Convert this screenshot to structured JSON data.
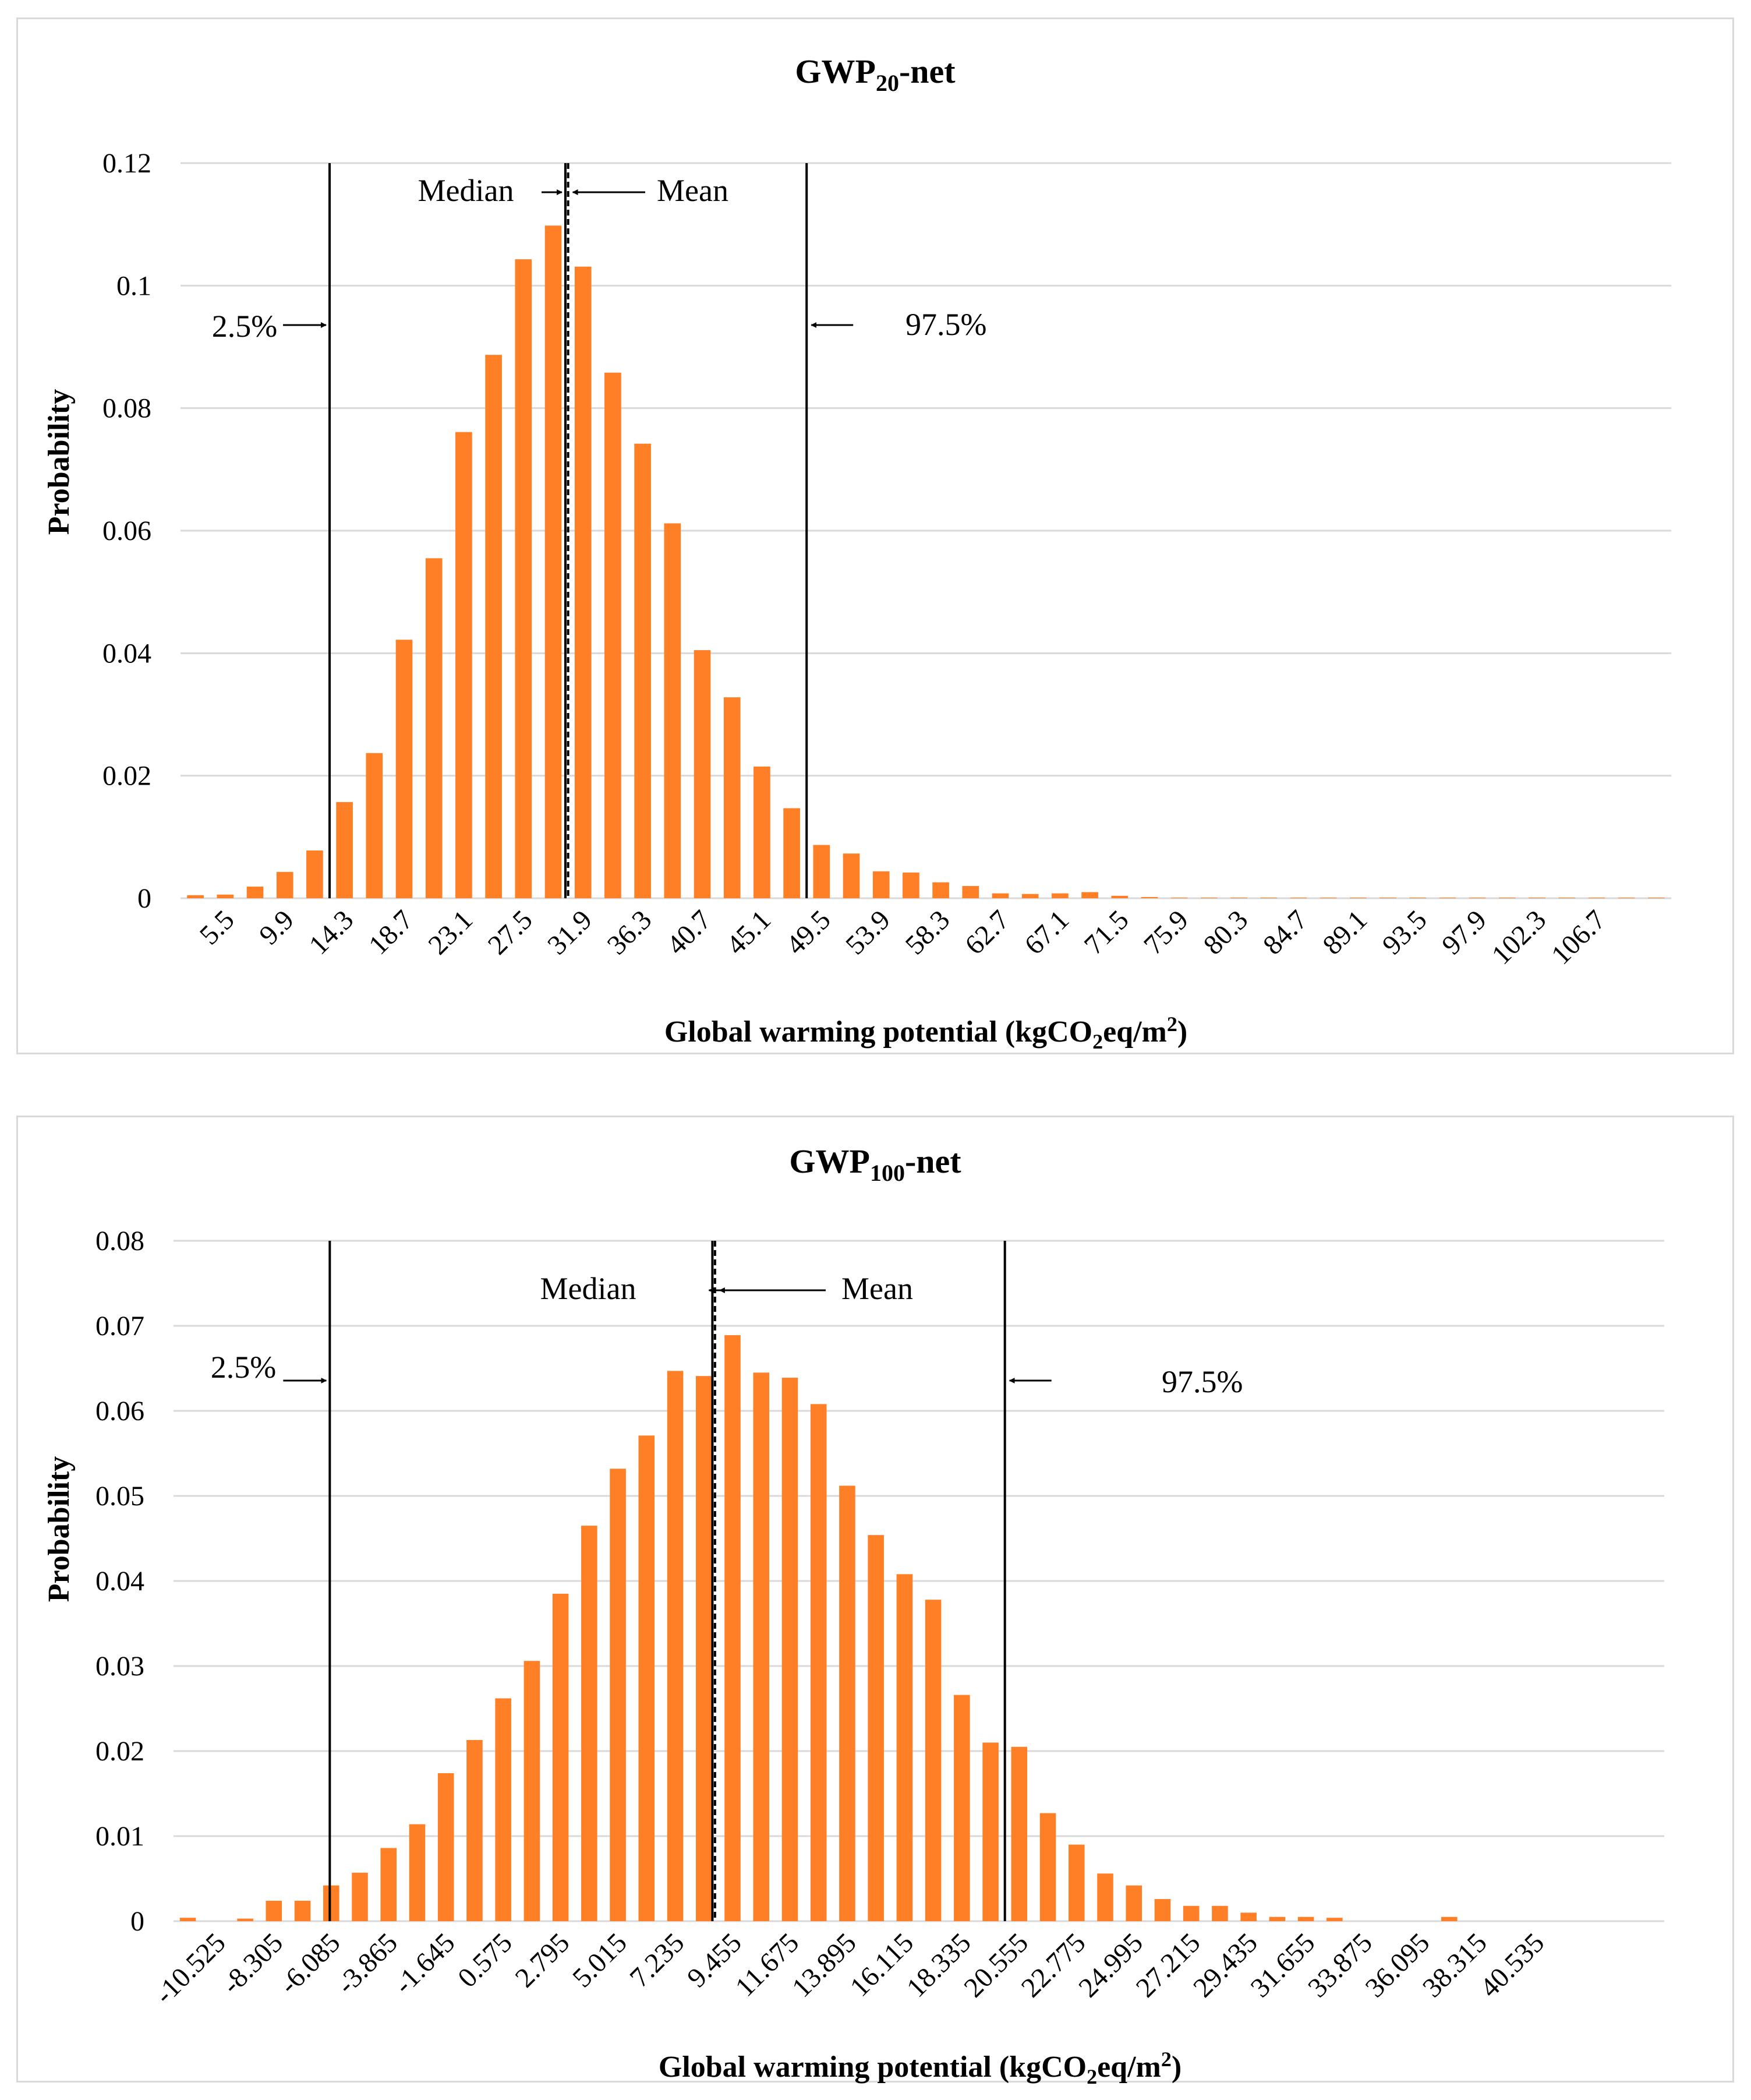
{
  "colors": {
    "bar": "#ff7f27",
    "grid": "#d9d9d9",
    "line": "#000000"
  },
  "chart_data": [
    {
      "type": "bar",
      "title": {
        "prefix": "GWP",
        "sub": "20",
        "suffix": "-net"
      },
      "xlabel": {
        "pre": "Global warming potential (kgCO",
        "sub": "2",
        "mid": "eq/m",
        "sup": "2",
        "post": ")"
      },
      "ylabel": "Probability",
      "ylim": [
        0,
        0.12
      ],
      "yticks": [
        "0",
        "0.02",
        "0.04",
        "0.06",
        "0.08",
        "0.1",
        "0.12"
      ],
      "ytick_values": [
        0,
        0.02,
        0.04,
        0.06,
        0.08,
        0.1,
        0.12
      ],
      "bin_start": 3.3,
      "bin_width": 2.2,
      "values": [
        0.0005,
        0.0006,
        0.0019,
        0.0043,
        0.0078,
        0.0157,
        0.0237,
        0.0422,
        0.0555,
        0.0761,
        0.0887,
        0.1043,
        0.1098,
        0.1031,
        0.0858,
        0.0742,
        0.0612,
        0.0405,
        0.0328,
        0.0215,
        0.0147,
        0.0087,
        0.0073,
        0.0044,
        0.0042,
        0.0026,
        0.002,
        0.0008,
        0.0007,
        0.0008,
        0.001,
        0.0004,
        0.0002,
        0.0001,
        0.0001,
        0.0001,
        0.0001,
        0.0001,
        0.0001,
        0.0001,
        0.0001,
        0.0001,
        0.0001,
        0.0001,
        0.0001,
        0.0001,
        0.0001,
        0.0001,
        0.0001,
        0.0001
      ],
      "x_tick_labels": [
        "5.5",
        "9.9",
        "14.3",
        "18.7",
        "23.1",
        "27.5",
        "31.9",
        "36.3",
        "40.7",
        "45.1",
        "49.5",
        "53.9",
        "58.3",
        "62.7",
        "67.1",
        "71.5",
        "75.9",
        "80.3",
        "84.7",
        "89.1",
        "93.5",
        "97.9",
        "102.3",
        "106.7"
      ],
      "percentile_2_5": 14.3,
      "median": 31.7,
      "mean": 31.9,
      "percentile_97_5": 49.5,
      "annotations": {
        "median": "Median",
        "mean": "Mean",
        "p2_5": "2.5%",
        "p97_5": "97.5%"
      }
    },
    {
      "type": "bar",
      "title": {
        "prefix": "GWP",
        "sub": "100",
        "suffix": "-net"
      },
      "xlabel": {
        "pre": "Global warming potential (kgCO",
        "sub": "2",
        "mid": "eq/m",
        "sup": "2",
        "post": ")"
      },
      "ylabel": "Probability",
      "ylim": [
        0,
        0.08
      ],
      "yticks": [
        "0",
        "0.01",
        "0.02",
        "0.03",
        "0.04",
        "0.05",
        "0.06",
        "0.07",
        "0.08"
      ],
      "ytick_values": [
        0,
        0.01,
        0.02,
        0.03,
        0.04,
        0.05,
        0.06,
        0.07,
        0.08
      ],
      "bin_start": -11.635,
      "bin_width": 1.11,
      "values": [
        0.0004,
        0.0,
        0.0003,
        0.0024,
        0.0024,
        0.0042,
        0.0057,
        0.0086,
        0.0114,
        0.0174,
        0.0213,
        0.0262,
        0.0306,
        0.0385,
        0.0465,
        0.0532,
        0.0571,
        0.0647,
        0.0641,
        0.0689,
        0.0645,
        0.0639,
        0.0608,
        0.0512,
        0.0454,
        0.0408,
        0.0378,
        0.0266,
        0.021,
        0.0205,
        0.0127,
        0.009,
        0.0056,
        0.0042,
        0.0026,
        0.0018,
        0.0018,
        0.001,
        0.0005,
        0.0005,
        0.0004,
        0.0,
        0.0,
        0.0,
        0.0005,
        0.0,
        0.0,
        0.0,
        0.0,
        0.0,
        0.0,
        0.0
      ],
      "x_tick_labels": [
        "-10.525",
        "-8.305",
        "-6.085",
        "-3.865",
        "-1.645",
        "0.575",
        "2.795",
        "5.015",
        "7.235",
        "9.455",
        "11.675",
        "13.895",
        "16.115",
        "18.335",
        "20.555",
        "22.775",
        "24.995",
        "27.215",
        "29.435",
        "31.655",
        "33.875",
        "36.095",
        "38.315",
        "40.535"
      ],
      "percentile_2_5": -5.585,
      "median": 9.23,
      "mean": 9.33,
      "percentile_97_5": 20.555,
      "annotations": {
        "median": "Median",
        "mean": "Mean",
        "p2_5": "2.5%",
        "p97_5": "97.5%"
      }
    }
  ]
}
